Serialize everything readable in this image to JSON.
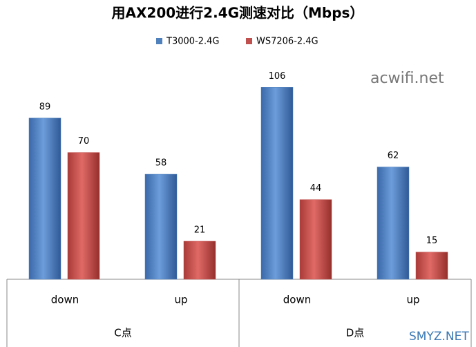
{
  "chart_data": {
    "type": "bar",
    "title": "用AX200进行2.4G测速对比（Mbps）",
    "categories": [
      "down",
      "up",
      "down",
      "up"
    ],
    "groups": [
      "C点",
      "D点"
    ],
    "series": [
      {
        "name": "T3000-2.4G",
        "color": "#4f81bd",
        "values": [
          89,
          58,
          106,
          62
        ]
      },
      {
        "name": "WS7206-2.4G",
        "color": "#c0504d",
        "values": [
          70,
          21,
          44,
          15
        ]
      }
    ],
    "annotations": [
      "acwifi.net",
      "SMYZ.NET"
    ]
  }
}
